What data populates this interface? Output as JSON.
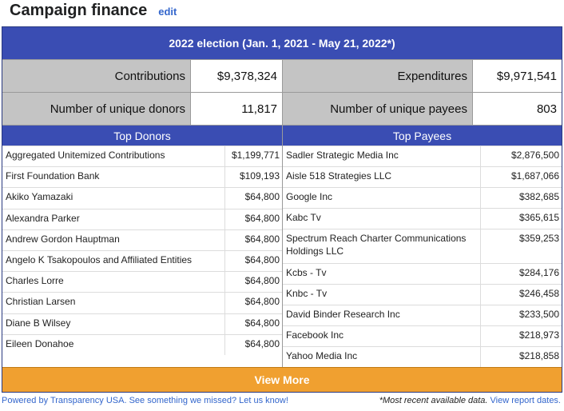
{
  "header": {
    "title": "Campaign finance",
    "edit_label": "edit"
  },
  "banner": {
    "label": "2022 election (Jan. 1, 2021 - May 21, 2022*)"
  },
  "summary": {
    "contributions": {
      "label": "Contributions",
      "value": "$9,378,324"
    },
    "donors": {
      "label": "Number of unique donors",
      "value": "11,817"
    },
    "expenditures": {
      "label": "Expenditures",
      "value": "$9,971,541"
    },
    "payees": {
      "label": "Number of unique payees",
      "value": "803"
    }
  },
  "top_donors": {
    "title": "Top Donors",
    "rows": [
      {
        "name": "Aggregated Unitemized Contributions",
        "amount": "$1,199,771"
      },
      {
        "name": "First Foundation Bank",
        "amount": "$109,193"
      },
      {
        "name": "Akiko Yamazaki",
        "amount": "$64,800"
      },
      {
        "name": "Alexandra Parker",
        "amount": "$64,800"
      },
      {
        "name": "Andrew Gordon Hauptman",
        "amount": "$64,800"
      },
      {
        "name": "Angelo K Tsakopoulos and Affiliated Entities",
        "amount": "$64,800"
      },
      {
        "name": "Charles Lorre",
        "amount": "$64,800"
      },
      {
        "name": "Christian Larsen",
        "amount": "$64,800"
      },
      {
        "name": "Diane B Wilsey",
        "amount": "$64,800"
      },
      {
        "name": "Eileen Donahoe",
        "amount": "$64,800"
      }
    ]
  },
  "top_payees": {
    "title": "Top Payees",
    "rows": [
      {
        "name": "Sadler Strategic Media Inc",
        "amount": "$2,876,500"
      },
      {
        "name": "Aisle 518 Strategies LLC",
        "amount": "$1,687,066"
      },
      {
        "name": "Google Inc",
        "amount": "$382,685"
      },
      {
        "name": "Kabc Tv",
        "amount": "$365,615"
      },
      {
        "name": "Spectrum Reach Charter Communications Holdings LLC",
        "amount": "$359,253"
      },
      {
        "name": "Kcbs - Tv",
        "amount": "$284,176"
      },
      {
        "name": "Knbc - Tv",
        "amount": "$246,458"
      },
      {
        "name": "David Binder Research Inc",
        "amount": "$233,500"
      },
      {
        "name": "Facebook Inc",
        "amount": "$218,973"
      },
      {
        "name": "Yahoo Media Inc",
        "amount": "$218,858"
      }
    ]
  },
  "view_more": {
    "label": "View More"
  },
  "footer": {
    "powered_by": "Powered by Transparency USA.",
    "feedback": "See something we missed? Let us know!",
    "note": "*Most recent available data.",
    "report_dates": "View report dates."
  }
}
